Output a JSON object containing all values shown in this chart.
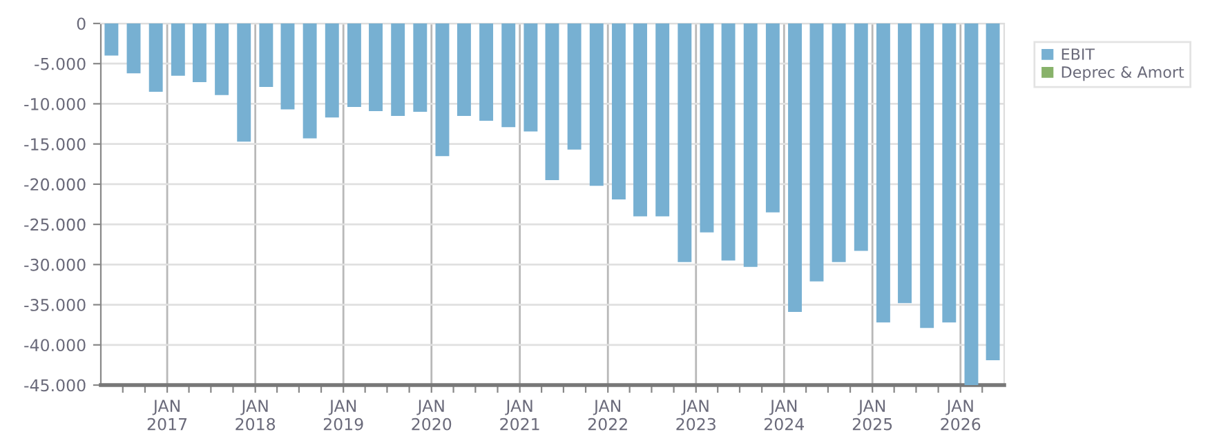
{
  "chart_data": {
    "type": "bar",
    "x": [
      "2016-05-15",
      "2016-08-15",
      "2016-11-15",
      "2017-02-15",
      "2017-05-15",
      "2017-08-15",
      "2017-11-15",
      "2018-02-15",
      "2018-05-15",
      "2018-08-15",
      "2018-11-15",
      "2019-02-15",
      "2019-05-15",
      "2019-08-15",
      "2019-11-15",
      "2020-02-15",
      "2020-05-15",
      "2020-08-15",
      "2020-11-15",
      "2021-02-15",
      "2021-05-15",
      "2021-08-15",
      "2021-11-15",
      "2022-02-15",
      "2022-05-15",
      "2022-08-15",
      "2022-11-15",
      "2023-02-15",
      "2023-05-15",
      "2023-08-15",
      "2023-11-15",
      "2024-02-15",
      "2024-05-15",
      "2024-08-15",
      "2024-11-15",
      "2025-02-15",
      "2025-05-15",
      "2025-08-15",
      "2025-11-15",
      "2026-02-15",
      "2026-05-15"
    ],
    "series": [
      {
        "name": "EBIT",
        "color": "#77b0d2",
        "values": [
          -4000,
          -6200,
          -8500,
          -6500,
          -7300,
          -8900,
          -14700,
          -7900,
          -10700,
          -14300,
          -11700,
          -10400,
          -10900,
          -11500,
          -11000,
          -16500,
          -11500,
          -12100,
          -12900,
          -13450,
          -19500,
          -15700,
          -20200,
          -21900,
          -24000,
          -24000,
          -29700,
          -26000,
          -29500,
          -30300,
          -23500,
          -35900,
          -32100,
          -29700,
          -28300,
          -37200,
          -34800,
          -37900,
          -37200,
          -45000,
          -41900
        ]
      },
      {
        "name": "Deprec & Amort",
        "color": "#88b26a",
        "values": [
          null,
          null,
          null,
          null,
          null,
          null,
          null,
          null,
          null,
          null,
          null,
          null,
          null,
          null,
          null,
          null,
          null,
          null,
          null,
          null,
          null,
          null,
          null,
          null,
          null,
          null,
          null,
          null,
          null,
          null,
          null,
          null,
          null,
          null,
          null,
          null,
          null,
          null,
          null,
          null,
          null
        ]
      }
    ],
    "xlim": [
      "2016-04-01",
      "2026-07-01"
    ],
    "xticks": [
      {
        "value": "2016-07-01",
        "label": null
      },
      {
        "value": "2016-10-01",
        "label": null
      },
      {
        "value": "2017-01-01",
        "label": "JAN\n2017"
      },
      {
        "value": "2017-04-01",
        "label": null
      },
      {
        "value": "2017-07-01",
        "label": null
      },
      {
        "value": "2017-10-01",
        "label": null
      },
      {
        "value": "2018-01-01",
        "label": "JAN\n2018"
      },
      {
        "value": "2018-04-01",
        "label": null
      },
      {
        "value": "2018-07-01",
        "label": null
      },
      {
        "value": "2018-10-01",
        "label": null
      },
      {
        "value": "2019-01-01",
        "label": "JAN\n2019"
      },
      {
        "value": "2019-04-01",
        "label": null
      },
      {
        "value": "2019-07-01",
        "label": null
      },
      {
        "value": "2019-10-01",
        "label": null
      },
      {
        "value": "2020-01-01",
        "label": "JAN\n2020"
      },
      {
        "value": "2020-04-01",
        "label": null
      },
      {
        "value": "2020-07-01",
        "label": null
      },
      {
        "value": "2020-10-01",
        "label": null
      },
      {
        "value": "2021-01-01",
        "label": "JAN\n2021"
      },
      {
        "value": "2021-04-01",
        "label": null
      },
      {
        "value": "2021-07-01",
        "label": null
      },
      {
        "value": "2021-10-01",
        "label": null
      },
      {
        "value": "2022-01-01",
        "label": "JAN\n2022"
      },
      {
        "value": "2022-04-01",
        "label": null
      },
      {
        "value": "2022-07-01",
        "label": null
      },
      {
        "value": "2022-10-01",
        "label": null
      },
      {
        "value": "2023-01-01",
        "label": "JAN\n2023"
      },
      {
        "value": "2023-04-01",
        "label": null
      },
      {
        "value": "2023-07-01",
        "label": null
      },
      {
        "value": "2023-10-01",
        "label": null
      },
      {
        "value": "2024-01-01",
        "label": "JAN\n2024"
      },
      {
        "value": "2024-04-01",
        "label": null
      },
      {
        "value": "2024-07-01",
        "label": null
      },
      {
        "value": "2024-10-01",
        "label": null
      },
      {
        "value": "2025-01-01",
        "label": "JAN\n2025"
      },
      {
        "value": "2025-04-01",
        "label": null
      },
      {
        "value": "2025-07-01",
        "label": null
      },
      {
        "value": "2025-10-01",
        "label": null
      },
      {
        "value": "2026-01-01",
        "label": "JAN\n2026"
      },
      {
        "value": "2026-04-01",
        "label": null
      }
    ],
    "ylim": [
      -45000,
      0
    ],
    "yticks": [
      0,
      {
        "value": -5000,
        "label": "-5.000"
      },
      {
        "value": -10000,
        "label": "-10.000"
      },
      {
        "value": -15000,
        "label": "-15.000"
      },
      {
        "value": -20000,
        "label": "-20.000"
      },
      {
        "value": -25000,
        "label": "-25.000"
      },
      {
        "value": -30000,
        "label": "-30.000"
      },
      {
        "value": -35000,
        "label": "-35.000"
      },
      {
        "value": -40000,
        "label": "-40.000"
      },
      {
        "value": -45000,
        "label": "-45.000"
      }
    ],
    "grid": true,
    "legend": "top right"
  }
}
